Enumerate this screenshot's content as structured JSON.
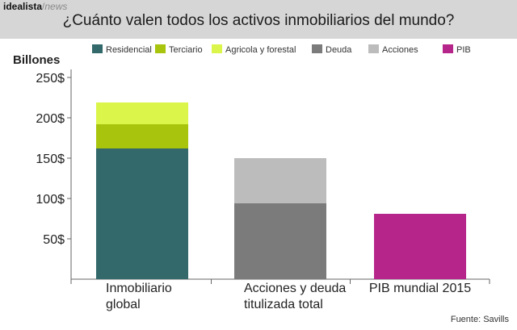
{
  "header": {
    "brand_name": "idealista",
    "brand_sep": "/",
    "brand_section": "news",
    "title": "¿Cuánto valen todos los activos inmobiliarios del mundo?"
  },
  "source": "Fuente: Savills",
  "colors": {
    "Residencial": "#33696a",
    "Terciario": "#a8c40d",
    "Agricola y forestal": "#dcf54a",
    "Deuda": "#7b7b7b",
    "Acciones": "#bcbcbc",
    "PIB": "#b6268a"
  },
  "chart_data": {
    "type": "bar",
    "stacked": true,
    "ylabel": "Billones",
    "ylim": [
      0,
      250
    ],
    "yticks": [
      50,
      100,
      150,
      200,
      250
    ],
    "ytick_labels": [
      "50$",
      "100$",
      "150$",
      "200$",
      "250$"
    ],
    "grid": false,
    "legend_position": "top",
    "categories": [
      "Inmobiliario global",
      "Acciones y deuda titulizada total",
      "PIB mundial 2015"
    ],
    "category_lines": [
      [
        "Inmobiliario",
        "global"
      ],
      [
        "Acciones y deuda",
        "titulizada total"
      ],
      [
        "PIB mundial 2015"
      ]
    ],
    "series": [
      {
        "name": "Residencial",
        "values": [
          162,
          0,
          0
        ]
      },
      {
        "name": "Terciario",
        "values": [
          30,
          0,
          0
        ]
      },
      {
        "name": "Agricola y forestal",
        "values": [
          27,
          0,
          0
        ]
      },
      {
        "name": "Deuda",
        "values": [
          0,
          94,
          0
        ]
      },
      {
        "name": "Acciones",
        "values": [
          0,
          56,
          0
        ]
      },
      {
        "name": "PIB",
        "values": [
          0,
          0,
          81
        ]
      }
    ]
  }
}
